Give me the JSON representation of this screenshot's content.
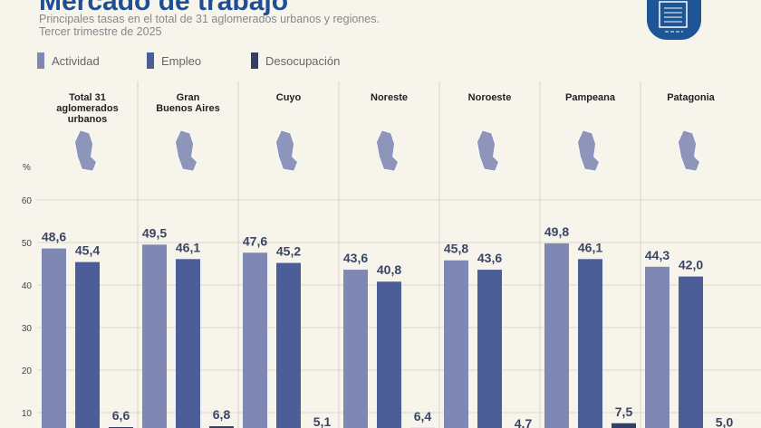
{
  "header": {
    "title": "Mercado de trabajo",
    "subtitle": "Principales tasas en el total de 31 aglomerados urbanos y regiones.",
    "period": "Tercer trimestre de 2025",
    "logo_icon": "document-monitor-icon"
  },
  "chart_data": {
    "type": "bar",
    "title": "Mercado de trabajo",
    "ylabel": "%",
    "ylim": [
      0,
      60
    ],
    "yticks": [
      10,
      20,
      30,
      40,
      50,
      60
    ],
    "grid": true,
    "legend": "top-left",
    "categories": [
      "Total 31 aglomerados urbanos",
      "Gran Buenos Aires",
      "Cuyo",
      "Noreste",
      "Noroeste",
      "Pampeana",
      "Patagonia"
    ],
    "series": [
      {
        "name": "Actividad",
        "color": "#7f87b3",
        "values": [
          48.6,
          49.5,
          47.6,
          43.6,
          45.8,
          49.8,
          44.3
        ],
        "labels": [
          "48,6",
          "49,5",
          "47,6",
          "43,6",
          "45,8",
          "49,8",
          "44,3"
        ]
      },
      {
        "name": "Empleo",
        "color": "#4b5e98",
        "values": [
          45.4,
          46.1,
          45.2,
          40.8,
          43.6,
          46.1,
          42.0
        ],
        "labels": [
          "45,4",
          "46,1",
          "45,2",
          "40,8",
          "43,6",
          "46,1",
          "42,0"
        ]
      },
      {
        "name": "Desocupación",
        "color": "#333e63",
        "values": [
          6.6,
          6.8,
          5.1,
          6.4,
          4.7,
          7.5,
          5.0
        ],
        "labels": [
          "6,6",
          "6,8",
          "5,1",
          "6,4",
          "4,7",
          "7,5",
          "5,0"
        ]
      }
    ]
  }
}
